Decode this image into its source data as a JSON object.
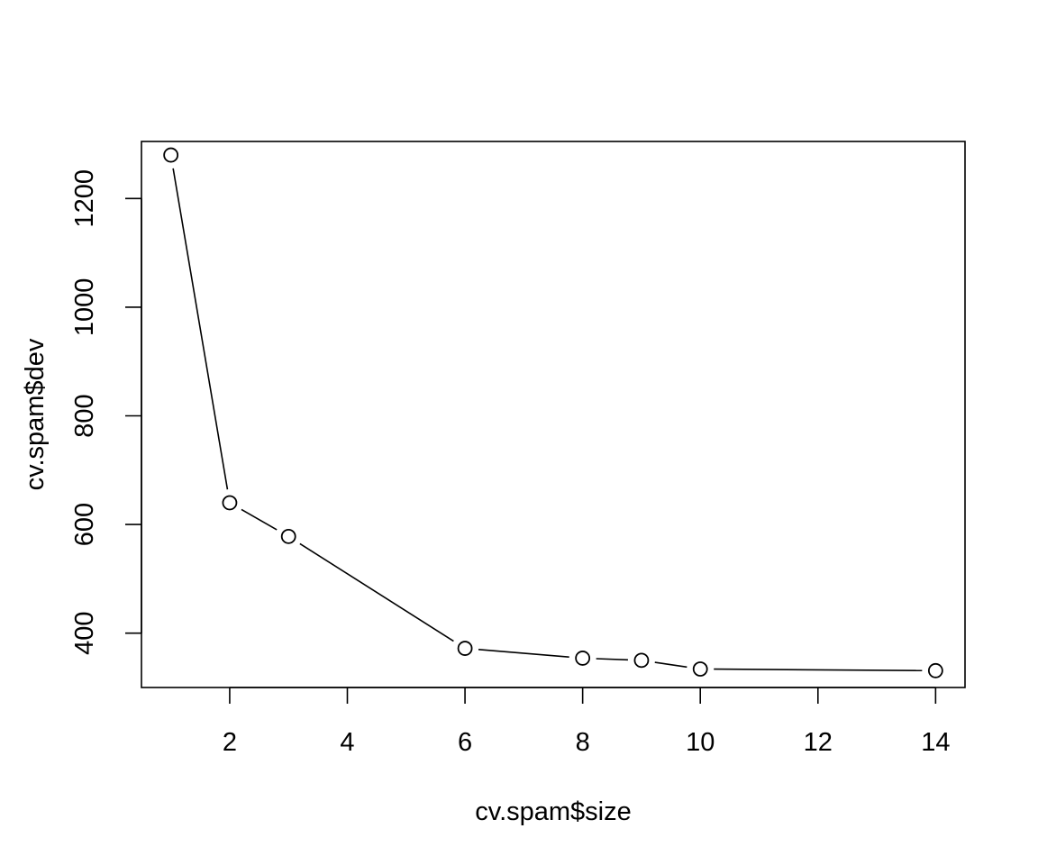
{
  "chart_data": {
    "type": "line",
    "title": "",
    "xlabel": "cv.spam$size",
    "ylabel": "cv.spam$dev",
    "x": [
      1,
      2,
      3,
      6,
      8,
      9,
      10,
      14
    ],
    "series": [
      {
        "values": [
          1280,
          640,
          578,
          372,
          354,
          350,
          334,
          331
        ]
      }
    ],
    "xlim": [
      0.5,
      14.5
    ],
    "ylim": [
      300,
      1305
    ],
    "xticks": [
      2,
      4,
      6,
      8,
      10,
      12,
      14
    ],
    "yticks": [
      400,
      600,
      800,
      1000,
      1200
    ],
    "grid": false,
    "markers": "open-circle",
    "line_color": "#000000"
  }
}
